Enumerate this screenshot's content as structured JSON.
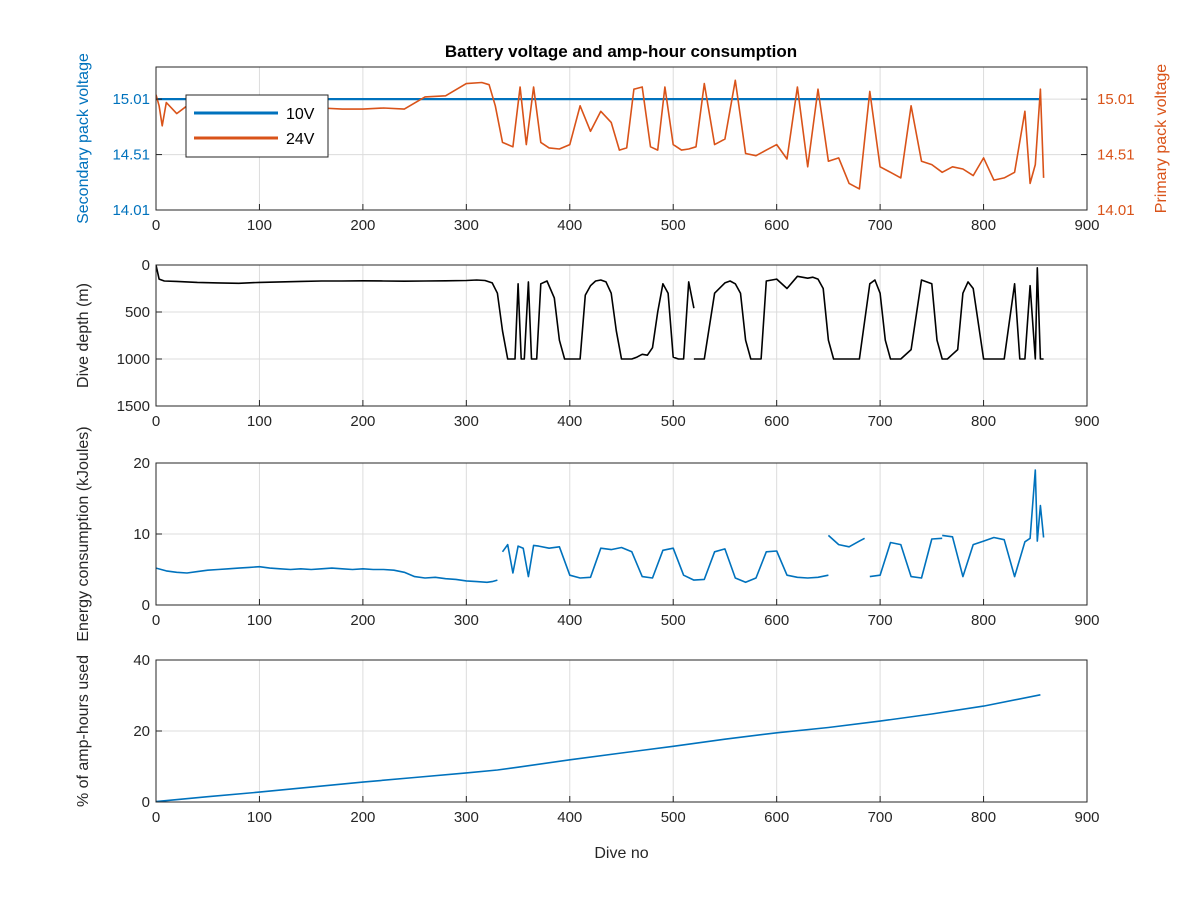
{
  "figure_title": "Battery voltage and amp-hour consumption",
  "colors": {
    "blue": "#0072BD",
    "orange": "#D95319",
    "black": "#000000",
    "grid": "#dcdcdc",
    "axis": "#262626"
  },
  "chart_data": [
    {
      "type": "line",
      "title": "Battery voltage and amp-hour consumption",
      "xlabel": "",
      "ylabel": "Secondary pack voltage",
      "ylabel_right": "Primary pack voltage",
      "xlim": [
        0,
        900
      ],
      "ylim": [
        14.01,
        15.3
      ],
      "ylim_right": [
        14.01,
        15.3
      ],
      "xticks": [
        0,
        100,
        200,
        300,
        400,
        500,
        600,
        700,
        800,
        900
      ],
      "yticks": [
        14.01,
        14.51,
        15.01
      ],
      "yticks_right": [
        14.01,
        14.51,
        15.01
      ],
      "grid": true,
      "legend": {
        "placement": "top-left",
        "entries": [
          "10V",
          "24V"
        ]
      },
      "series": [
        {
          "name": "10V",
          "axis": "left",
          "x": [
            0,
            855
          ],
          "y": [
            15.01,
            15.01
          ]
        },
        {
          "name": "24V",
          "axis": "right",
          "x": [
            0,
            3,
            6,
            10,
            20,
            30,
            40,
            60,
            80,
            100,
            120,
            140,
            160,
            180,
            200,
            220,
            240,
            260,
            280,
            300,
            315,
            322,
            328,
            335,
            345,
            352,
            358,
            365,
            372,
            380,
            390,
            400,
            410,
            420,
            430,
            440,
            448,
            455,
            462,
            470,
            478,
            485,
            492,
            500,
            508,
            515,
            522,
            530,
            540,
            550,
            560,
            570,
            580,
            590,
            600,
            610,
            620,
            630,
            640,
            650,
            660,
            670,
            680,
            690,
            700,
            710,
            720,
            730,
            740,
            750,
            760,
            770,
            780,
            790,
            800,
            810,
            820,
            830,
            840,
            845,
            850,
            855,
            858
          ],
          "y": [
            15.05,
            14.95,
            14.77,
            14.98,
            14.88,
            14.95,
            14.9,
            14.93,
            14.9,
            14.91,
            14.93,
            14.92,
            14.93,
            14.92,
            14.92,
            14.93,
            14.92,
            15.03,
            15.04,
            15.15,
            15.16,
            15.14,
            14.95,
            14.62,
            14.58,
            15.12,
            14.6,
            15.12,
            14.62,
            14.57,
            14.56,
            14.6,
            14.95,
            14.72,
            14.9,
            14.8,
            14.55,
            14.57,
            15.1,
            15.12,
            14.58,
            14.55,
            15.12,
            14.6,
            14.55,
            14.56,
            14.58,
            15.15,
            14.6,
            14.65,
            15.18,
            14.52,
            14.5,
            14.55,
            14.6,
            14.47,
            15.12,
            14.4,
            15.1,
            14.45,
            14.48,
            14.25,
            14.2,
            15.08,
            14.4,
            14.35,
            14.3,
            14.95,
            14.45,
            14.42,
            14.35,
            14.4,
            14.38,
            14.32,
            14.48,
            14.28,
            14.3,
            14.35,
            14.9,
            14.25,
            14.42,
            15.1,
            14.3
          ]
        }
      ]
    },
    {
      "type": "line",
      "title": "",
      "xlabel": "",
      "ylabel": "Dive depth (m)",
      "xlim": [
        0,
        900
      ],
      "ylim": [
        0,
        1500
      ],
      "y_reversed": true,
      "xticks": [
        0,
        100,
        200,
        300,
        400,
        500,
        600,
        700,
        800,
        900
      ],
      "yticks": [
        0,
        500,
        1000,
        1500
      ],
      "grid": true,
      "series": [
        {
          "color": "black",
          "x": [
            0,
            3,
            8,
            20,
            40,
            60,
            80,
            100,
            120,
            140,
            160,
            180,
            200,
            220,
            240,
            260,
            280,
            300,
            310,
            318,
            325,
            330,
            335,
            340,
            345,
            347,
            350,
            353,
            356,
            360,
            363,
            368,
            372,
            378,
            385,
            390,
            395,
            400,
            405,
            410,
            415,
            420,
            425,
            430,
            435,
            440,
            445,
            450,
            455,
            460,
            465,
            470,
            475,
            480,
            485,
            490,
            495,
            500,
            505,
            510,
            515,
            520,
            null,
            520,
            525,
            530,
            540,
            550,
            555,
            560,
            565,
            570,
            575,
            580,
            585,
            590,
            600,
            610,
            620,
            630,
            635,
            640,
            645,
            650,
            655,
            660,
            670,
            680,
            690,
            695,
            700,
            705,
            710,
            715,
            720,
            730,
            740,
            750,
            755,
            760,
            765,
            770,
            775,
            780,
            785,
            790,
            800,
            810,
            820,
            830,
            835,
            840,
            845,
            850,
            852,
            855,
            858
          ],
          "y": [
            0,
            150,
            170,
            175,
            185,
            190,
            195,
            185,
            180,
            175,
            170,
            170,
            168,
            170,
            172,
            170,
            168,
            165,
            160,
            165,
            190,
            300,
            700,
            1000,
            1000,
            1000,
            200,
            1000,
            1000,
            180,
            1000,
            1000,
            200,
            170,
            350,
            800,
            1000,
            1000,
            1000,
            1000,
            320,
            220,
            170,
            160,
            180,
            300,
            700,
            1000,
            1000,
            1000,
            980,
            950,
            960,
            880,
            500,
            200,
            300,
            980,
            1000,
            1000,
            180,
            460,
            null,
            1000,
            1000,
            1000,
            300,
            190,
            170,
            200,
            300,
            800,
            1000,
            1000,
            1000,
            170,
            150,
            250,
            120,
            140,
            130,
            150,
            250,
            800,
            1000,
            1000,
            1000,
            1000,
            200,
            160,
            300,
            800,
            1000,
            1000,
            1000,
            900,
            160,
            200,
            800,
            1000,
            1000,
            950,
            900,
            300,
            180,
            250,
            1000,
            1000,
            1000,
            200,
            1000,
            1000,
            220,
            1000,
            30,
            1000,
            1000
          ]
        }
      ]
    },
    {
      "type": "line",
      "title": "",
      "xlabel": "",
      "ylabel": "Energy consumption (kJoules)",
      "xlim": [
        0,
        900
      ],
      "ylim": [
        0,
        20
      ],
      "xticks": [
        0,
        100,
        200,
        300,
        400,
        500,
        600,
        700,
        800,
        900
      ],
      "yticks": [
        0,
        10,
        20
      ],
      "grid": true,
      "series": [
        {
          "color": "blue",
          "x": [
            0,
            10,
            20,
            30,
            40,
            50,
            60,
            70,
            80,
            90,
            100,
            110,
            120,
            130,
            140,
            150,
            160,
            170,
            180,
            190,
            200,
            210,
            220,
            230,
            240,
            250,
            260,
            270,
            280,
            290,
            300,
            310,
            320,
            325,
            330,
            null,
            335,
            340,
            345,
            350,
            355,
            360,
            365,
            370,
            380,
            390,
            400,
            410,
            420,
            430,
            440,
            450,
            460,
            470,
            480,
            490,
            500,
            510,
            520,
            530,
            540,
            550,
            560,
            570,
            580,
            590,
            600,
            610,
            620,
            630,
            640,
            650,
            null,
            650,
            660,
            670,
            680,
            685,
            null,
            690,
            700,
            710,
            720,
            730,
            740,
            750,
            760,
            null,
            760,
            770,
            780,
            790,
            800,
            810,
            820,
            830,
            840,
            845,
            850,
            852,
            855,
            858
          ],
          "y": [
            5.2,
            4.8,
            4.6,
            4.5,
            4.7,
            4.9,
            5.0,
            5.1,
            5.2,
            5.3,
            5.4,
            5.2,
            5.1,
            5.0,
            5.1,
            5.0,
            5.1,
            5.2,
            5.1,
            5.0,
            5.1,
            5.0,
            5.0,
            4.9,
            4.6,
            4.0,
            3.8,
            3.9,
            3.7,
            3.6,
            3.4,
            3.3,
            3.2,
            3.3,
            3.5,
            null,
            7.5,
            8.5,
            4.5,
            8.3,
            8.0,
            4.0,
            8.4,
            8.3,
            8.0,
            8.2,
            4.2,
            3.8,
            3.9,
            8.0,
            7.8,
            8.1,
            7.5,
            4.0,
            3.8,
            7.7,
            8.0,
            4.2,
            3.5,
            3.6,
            7.5,
            7.9,
            3.8,
            3.2,
            3.8,
            7.5,
            7.6,
            4.2,
            3.9,
            3.8,
            3.9,
            4.2,
            null,
            9.8,
            8.5,
            8.2,
            9.0,
            9.4,
            null,
            4.0,
            4.2,
            8.8,
            8.5,
            4.0,
            3.8,
            9.3,
            9.4,
            null,
            9.8,
            9.6,
            4.0,
            8.5,
            9.0,
            9.5,
            9.2,
            4.0,
            8.9,
            9.4,
            19.0,
            9.0,
            14.0,
            9.5
          ]
        }
      ]
    },
    {
      "type": "line",
      "title": "",
      "xlabel": "Dive no",
      "ylabel": "% of amp-hours used",
      "xlim": [
        0,
        900
      ],
      "ylim": [
        0,
        40
      ],
      "xticks": [
        0,
        100,
        200,
        300,
        400,
        500,
        600,
        700,
        800,
        900
      ],
      "yticks": [
        0,
        20,
        40
      ],
      "grid": true,
      "series": [
        {
          "color": "blue",
          "x": [
            0,
            50,
            100,
            150,
            200,
            250,
            300,
            330,
            350,
            400,
            450,
            500,
            550,
            600,
            650,
            700,
            750,
            800,
            855
          ],
          "y": [
            0.1,
            1.5,
            2.8,
            4.2,
            5.6,
            6.9,
            8.2,
            9.0,
            9.8,
            11.9,
            13.8,
            15.7,
            17.7,
            19.5,
            21.0,
            22.8,
            24.8,
            27.0,
            30.2
          ]
        }
      ]
    }
  ]
}
